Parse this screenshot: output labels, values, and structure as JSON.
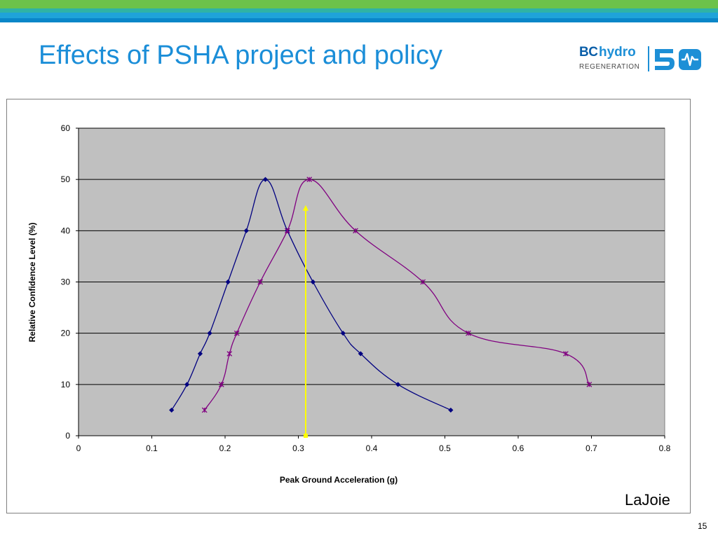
{
  "slide": {
    "title": "Effects of PSHA project and policy",
    "credit": "LaJoie",
    "page_number": "15"
  },
  "logo": {
    "bc": "BC",
    "hydro": "hydro",
    "regeneration": "REGENERATION",
    "anniversary": "50"
  },
  "colors": {
    "title": "#1b8ed8",
    "plot_area": "#c0c0c0",
    "series_1": "#000080",
    "series_2": "#800080",
    "marker_line": "#ffff00"
  },
  "chart_data": {
    "type": "scatter",
    "title": "",
    "xlabel": "Peak Ground Acceleration (g)",
    "ylabel": "Relative Confidence Level (%)",
    "xlim": [
      0,
      0.8
    ],
    "ylim": [
      0,
      60
    ],
    "x_ticks": [
      "0",
      "0.1",
      "0.2",
      "0.3",
      "0.4",
      "0.5",
      "0.6",
      "0.7",
      "0.8"
    ],
    "y_ticks": [
      "0",
      "10",
      "20",
      "30",
      "40",
      "50",
      "60"
    ],
    "grid": "horizontal",
    "legend": "none",
    "series": [
      {
        "marker": "diamond",
        "color": "#000080",
        "points": [
          [
            0.127,
            5
          ],
          [
            0.148,
            10
          ],
          [
            0.166,
            16
          ],
          [
            0.179,
            20
          ],
          [
            0.204,
            30
          ],
          [
            0.229,
            40
          ],
          [
            0.255,
            50
          ],
          [
            0.285,
            40
          ],
          [
            0.32,
            30
          ],
          [
            0.361,
            20
          ],
          [
            0.385,
            16
          ],
          [
            0.436,
            10
          ],
          [
            0.508,
            5
          ]
        ]
      },
      {
        "marker": "star",
        "color": "#800080",
        "points": [
          [
            0.172,
            5
          ],
          [
            0.195,
            10
          ],
          [
            0.206,
            16
          ],
          [
            0.216,
            20
          ],
          [
            0.248,
            30
          ],
          [
            0.285,
            40
          ],
          [
            0.315,
            50
          ],
          [
            0.378,
            40
          ],
          [
            0.47,
            30
          ],
          [
            0.532,
            20
          ],
          [
            0.665,
            16
          ],
          [
            0.697,
            10
          ]
        ]
      }
    ],
    "annotation": {
      "type": "arrow",
      "color": "#ffff00",
      "x": 0.31,
      "y_from": 0,
      "y_to": 45
    }
  }
}
